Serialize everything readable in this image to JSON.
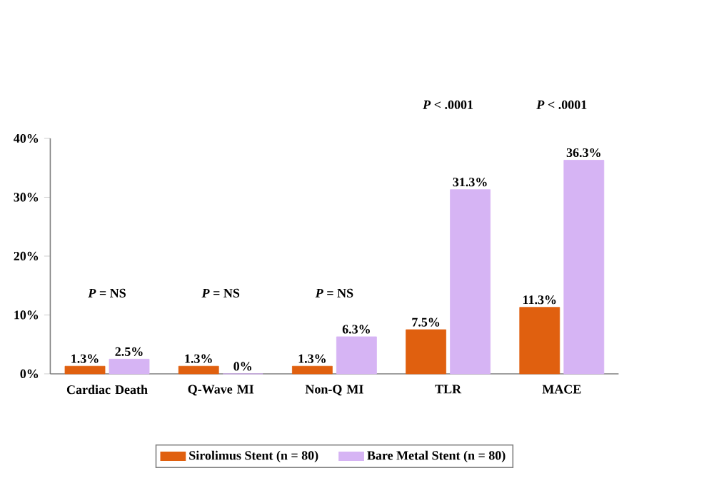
{
  "chart_data": {
    "type": "bar",
    "categories": [
      "Cardiac Death",
      "Q-Wave MI",
      "Non-Q MI",
      "TLR",
      "MACE"
    ],
    "series": [
      {
        "name": "Sirolimus Stent (n = 80)",
        "color": "#e0600f",
        "values": [
          1.3,
          1.3,
          1.3,
          7.5,
          11.3
        ],
        "value_labels": [
          "1.3%",
          "1.3%",
          "1.3%",
          "7.5%",
          "11.3%"
        ]
      },
      {
        "name": "Bare Metal Stent (n = 80)",
        "color": "#d6b4f4",
        "values": [
          2.5,
          0,
          6.3,
          31.3,
          36.3
        ],
        "value_labels": [
          "2.5%",
          "0%",
          "6.3%",
          "31.3%",
          "36.3%"
        ]
      }
    ],
    "ylim": [
      0,
      40
    ],
    "yticks": [
      {
        "value": 0,
        "label": "0%"
      },
      {
        "value": 10,
        "label": "10%"
      },
      {
        "value": 20,
        "label": "20%"
      },
      {
        "value": 30,
        "label": "30%"
      },
      {
        "value": 40,
        "label": "40%"
      }
    ],
    "annotations": [
      "*P* = NS",
      "*P* = NS",
      "*P* = NS",
      "*P* < .0001",
      "*P* < .0001"
    ],
    "legend": "bottom",
    "grid": false
  }
}
